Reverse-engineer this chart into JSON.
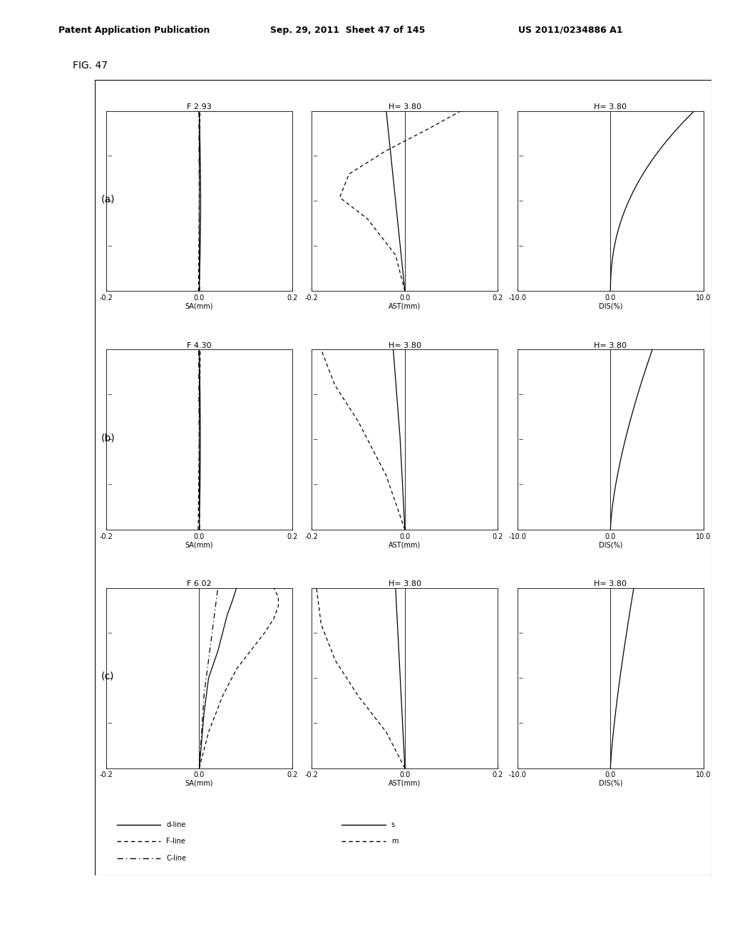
{
  "header_left": "Patent Application Publication",
  "header_mid": "Sep. 29, 2011  Sheet 47 of 145",
  "header_right": "US 2011/0234886 A1",
  "fig_label": "FIG. 47",
  "row_labels": [
    "(a)",
    "(b)",
    "(c)"
  ],
  "col1_titles": [
    "F 2.93",
    "F 4.30",
    "F 6.02"
  ],
  "col2_titles": [
    "H= 3.80",
    "H= 3.80",
    "H= 3.80"
  ],
  "col3_titles": [
    "H= 3.80",
    "H= 3.80",
    "H= 3.80"
  ],
  "col1_xlabel": "SA(mm)",
  "col2_xlabel": "AST(mm)",
  "col3_xlabel": "DIS(%)",
  "col1_xlim": [
    -0.2,
    0.2
  ],
  "col2_xlim": [
    -0.2,
    0.2
  ],
  "col3_xlim": [
    -10.0,
    10.0
  ],
  "col1_xticks": [
    -0.2,
    0.0,
    0.2
  ],
  "col2_xticks": [
    -0.2,
    0.0,
    0.2
  ],
  "col3_xticks": [
    -10.0,
    0.0,
    10.0
  ],
  "col1_xticklabels": [
    "-0.2",
    "0.0",
    "0.2"
  ],
  "col2_xticklabels": [
    "-0.2",
    "0.0",
    "0.2"
  ],
  "col3_xticklabels": [
    "-10.0",
    "0.0",
    "10.0"
  ],
  "background_color": "#ffffff",
  "line_color": "#000000",
  "legend_col1": [
    {
      "label": "d-line",
      "style": "solid",
      "lw": 1.0
    },
    {
      "label": "F-line",
      "style": "dashed",
      "lw": 1.0
    },
    {
      "label": "C-line",
      "style": "dashdot",
      "lw": 1.0
    }
  ],
  "legend_col2": [
    {
      "label": "s",
      "style": "solid",
      "lw": 1.0
    },
    {
      "label": "m",
      "style": "dashed",
      "lw": 1.0
    }
  ]
}
